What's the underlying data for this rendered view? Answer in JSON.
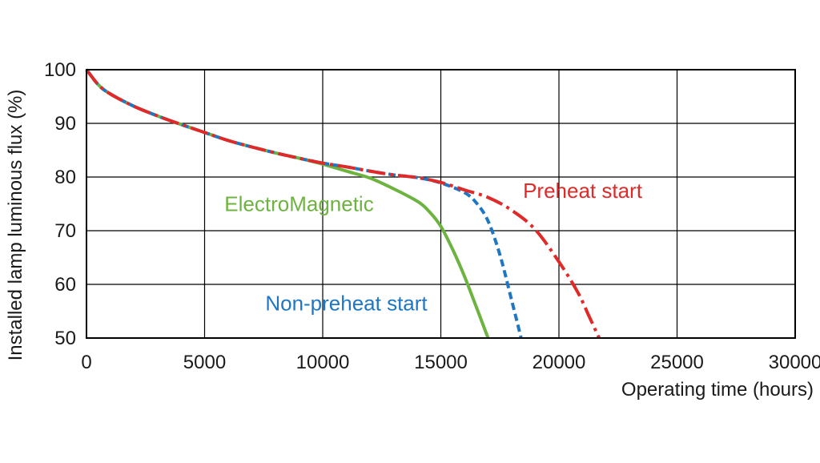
{
  "chart_data": {
    "type": "line",
    "title": "",
    "xlabel": "Operating time (hours)",
    "ylabel": "Installed lamp luminous flux  (%)",
    "xlim": [
      0,
      30000
    ],
    "ylim": [
      50,
      100
    ],
    "xticks": [
      0,
      5000,
      10000,
      15000,
      20000,
      25000,
      30000
    ],
    "xtick_labels": [
      "0",
      "5000",
      "10000",
      "15000",
      "20000",
      "25000",
      "30000"
    ],
    "yticks": [
      50,
      60,
      70,
      80,
      90,
      100
    ],
    "ytick_labels": [
      "50",
      "60",
      "70",
      "80",
      "90",
      "100"
    ],
    "grid": true,
    "legend": "none",
    "series": [
      {
        "name": "ElectroMagnetic",
        "color": "#6db33f",
        "style": "solid",
        "x": [
          0,
          500,
          1000,
          2000,
          3000,
          4000,
          5000,
          6000,
          7000,
          8000,
          9000,
          10000,
          11000,
          12000,
          13000,
          14000,
          14500,
          15000,
          15500,
          16000,
          16500,
          17000
        ],
        "y": [
          100,
          97.2,
          95.5,
          93.2,
          91.4,
          89.8,
          88.3,
          86.8,
          85.6,
          84.5,
          83.5,
          82.4,
          81.1,
          79.8,
          77.8,
          75.5,
          73.6,
          70.8,
          66.5,
          61.5,
          55.8,
          50
        ]
      },
      {
        "name": "Non-preheat start",
        "color": "#1f77c4",
        "style": "dashed",
        "x": [
          0,
          500,
          1000,
          2000,
          3000,
          4000,
          5000,
          6000,
          7000,
          8000,
          9000,
          10000,
          11000,
          12000,
          13000,
          14000,
          15000,
          16000,
          16500,
          17000,
          17500,
          18000,
          18400
        ],
        "y": [
          100,
          97.2,
          95.5,
          93.2,
          91.4,
          89.8,
          88.3,
          86.8,
          85.6,
          84.5,
          83.5,
          82.6,
          81.9,
          81.1,
          80.4,
          79.9,
          78.9,
          77.1,
          75.2,
          71.8,
          65.5,
          57,
          50
        ]
      },
      {
        "name": "Preheat start",
        "color": "#e02a2a",
        "style": "long-dash",
        "x": [
          0,
          500,
          1000,
          2000,
          3000,
          4000,
          5000,
          6000,
          7000,
          8000,
          9000,
          10000,
          11000,
          12000,
          13000,
          14000,
          15000,
          16000,
          17000,
          18000,
          19000,
          20000,
          20800,
          21300,
          21700
        ],
        "y": [
          100,
          97.2,
          95.5,
          93.2,
          91.4,
          89.8,
          88.3,
          86.8,
          85.6,
          84.5,
          83.5,
          82.6,
          81.9,
          81.1,
          80.4,
          79.9,
          79.0,
          77.6,
          76.2,
          73.8,
          70.2,
          64.2,
          58.5,
          53.8,
          50
        ]
      }
    ],
    "annotations": [
      {
        "text": "ElectroMagnetic",
        "series": "ElectroMagnetic",
        "color": "#6db33f",
        "x": 9000,
        "y": 75
      },
      {
        "text": "Non-preheat start",
        "series": "Non-preheat start",
        "color": "#1f77c4",
        "x": 11000,
        "y": 56.5
      },
      {
        "text": "Preheat start",
        "series": "Preheat start",
        "color": "#e02a2a",
        "x": 21000,
        "y": 77.5
      }
    ]
  }
}
